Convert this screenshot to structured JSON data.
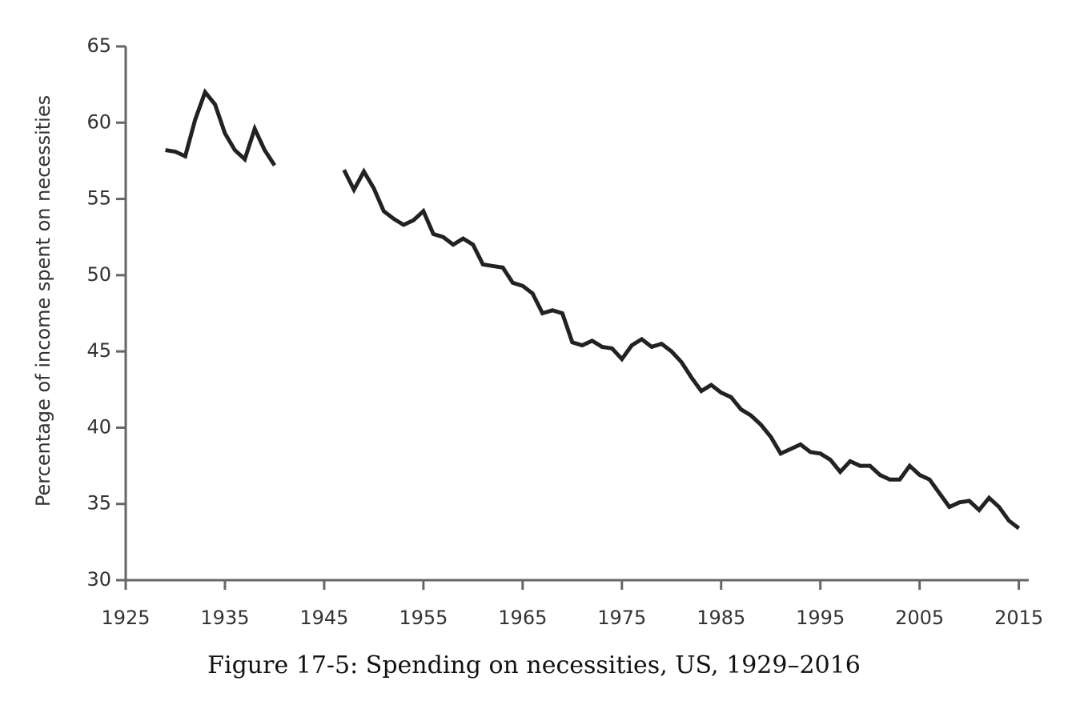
{
  "chart_data": {
    "type": "line",
    "title": "Figure 17-5: Spending on necessities, US, 1929–2016",
    "ylabel": "Percentage of income spent on necessities",
    "x": [
      1929,
      1930,
      1931,
      1932,
      1933,
      1934,
      1935,
      1936,
      1937,
      1938,
      1939,
      1940,
      1941,
      1942,
      1943,
      1944,
      1945,
      1946,
      1947,
      1948,
      1949,
      1950,
      1951,
      1952,
      1953,
      1954,
      1955,
      1956,
      1957,
      1958,
      1959,
      1960,
      1961,
      1962,
      1963,
      1964,
      1965,
      1966,
      1967,
      1968,
      1969,
      1970,
      1971,
      1972,
      1973,
      1974,
      1975,
      1976,
      1977,
      1978,
      1979,
      1980,
      1981,
      1982,
      1983,
      1984,
      1985,
      1986,
      1987,
      1988,
      1989,
      1990,
      1991,
      1992,
      1993,
      1994,
      1995,
      1996,
      1997,
      1998,
      1999,
      2000,
      2001,
      2002,
      2003,
      2004,
      2005,
      2006,
      2007,
      2008,
      2009,
      2010,
      2011,
      2012,
      2013,
      2014,
      2015
    ],
    "series": [
      {
        "color": "#222222",
        "values": [
          58.2,
          58.1,
          57.8,
          60.2,
          62.0,
          61.2,
          59.3,
          58.2,
          57.6,
          59.6,
          58.2,
          57.2,
          null,
          null,
          null,
          null,
          null,
          null,
          56.9,
          55.6,
          56.8,
          55.7,
          54.2,
          53.7,
          53.3,
          53.6,
          54.2,
          52.7,
          52.5,
          52.0,
          52.4,
          52.0,
          50.7,
          50.6,
          50.5,
          49.5,
          49.3,
          48.8,
          47.5,
          47.7,
          47.5,
          45.6,
          45.4,
          45.7,
          45.3,
          45.2,
          44.5,
          45.4,
          45.8,
          45.3,
          45.5,
          45.0,
          44.3,
          43.3,
          42.4,
          42.8,
          42.3,
          42.0,
          41.2,
          40.8,
          40.2,
          39.4,
          38.3,
          38.6,
          38.9,
          38.4,
          38.3,
          37.9,
          37.1,
          37.8,
          37.5,
          37.5,
          36.9,
          36.6,
          36.6,
          37.5,
          36.9,
          36.6,
          35.7,
          34.8,
          35.1,
          35.2,
          34.6,
          35.4,
          34.8,
          33.9,
          33.4
        ]
      }
    ],
    "xlim": [
      1925,
      2016
    ],
    "xticks": [
      1925,
      1935,
      1945,
      1955,
      1965,
      1975,
      1985,
      1995,
      2005,
      2015
    ],
    "ylim": [
      30,
      65
    ],
    "yticks": [
      30,
      35,
      40,
      45,
      50,
      55,
      60,
      65
    ]
  }
}
